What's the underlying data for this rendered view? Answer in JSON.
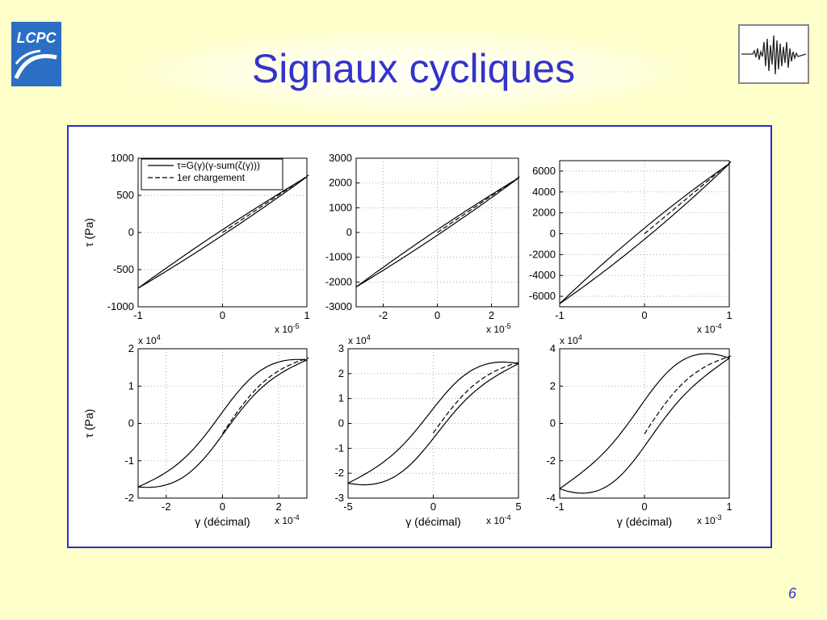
{
  "slide": {
    "title": "Signaux cycliques",
    "page_number": "6",
    "logo_text": "LCPC",
    "colors": {
      "title": "#3333cc",
      "background": "#ffffcc",
      "frame": "#2233cc",
      "logo": "#2a6fc4"
    }
  },
  "legend": {
    "entries": [
      {
        "label": "τ=G(γ)(γ-sum(ζ(γ)))",
        "style": "solid"
      },
      {
        "label": "1er chargement",
        "style": "dashed"
      }
    ]
  },
  "chart_data": [
    {
      "type": "line",
      "title": "",
      "ylabel": "τ (Pa)",
      "xlabel": "",
      "x_exponent": "x 10-5",
      "y_exponent": "",
      "xlim": [
        -1,
        1
      ],
      "ylim": [
        -1000,
        1000
      ],
      "xticks": [
        "-1",
        "0",
        "1"
      ],
      "yticks": [
        "1000",
        "500",
        "0",
        "-500",
        "-1000"
      ],
      "amplitude": [
        1,
        750
      ],
      "loop_width": 0.05,
      "shape": "linear",
      "legend": true,
      "grid": true
    },
    {
      "type": "line",
      "title": "",
      "ylabel": "",
      "xlabel": "",
      "x_exponent": "x 10-5",
      "y_exponent": "",
      "xlim": [
        -3,
        3
      ],
      "ylim": [
        -3000,
        3000
      ],
      "xticks": [
        "-2",
        "0",
        "2"
      ],
      "yticks": [
        "3000",
        "2000",
        "1000",
        "0",
        "-1000",
        "-2000",
        "-3000"
      ],
      "amplitude": [
        3,
        2200
      ],
      "loop_width": 0.05,
      "shape": "linear",
      "legend": false,
      "grid": true
    },
    {
      "type": "line",
      "title": "",
      "ylabel": "",
      "xlabel": "",
      "x_exponent": "x 10-4",
      "y_exponent": "",
      "xlim": [
        -1,
        1
      ],
      "ylim": [
        -7000,
        7000
      ],
      "xticks": [
        "-1",
        "0",
        "1"
      ],
      "yticks": [
        "6000",
        "4000",
        "2000",
        "0",
        "-2000",
        "-4000",
        "-6000"
      ],
      "amplitude": [
        1,
        6700
      ],
      "loop_width": 0.08,
      "shape": "linear",
      "legend": false,
      "grid": true
    },
    {
      "type": "line",
      "title": "",
      "ylabel": "τ (Pa)",
      "xlabel": "γ (décimal)",
      "x_exponent": "x 10-4",
      "y_exponent": "x 10",
      "xlim": [
        -3,
        3
      ],
      "ylim": [
        -2,
        2
      ],
      "xticks": [
        "-2",
        "0",
        "2"
      ],
      "yticks": [
        "2",
        "1",
        "0",
        "-1",
        "-2"
      ],
      "amplitude": [
        3,
        1.7
      ],
      "loop_width": 0.18,
      "shape": "curved",
      "legend": false,
      "grid": true
    },
    {
      "type": "line",
      "title": "",
      "ylabel": "",
      "xlabel": "γ (décimal)",
      "x_exponent": "x 10-4",
      "y_exponent": "x 10",
      "xlim": [
        -5,
        5
      ],
      "ylim": [
        -3,
        3
      ],
      "xticks": [
        "-5",
        "0",
        "5"
      ],
      "yticks": [
        "3",
        "2",
        "1",
        "0",
        "-1",
        "-2",
        "-3"
      ],
      "amplitude": [
        5,
        2.4
      ],
      "loop_width": 0.25,
      "shape": "curved",
      "legend": false,
      "grid": true
    },
    {
      "type": "line",
      "title": "",
      "ylabel": "",
      "xlabel": "γ (décimal)",
      "x_exponent": "x 10-3",
      "y_exponent": "x 10",
      "xlim": [
        -1,
        1
      ],
      "ylim": [
        -4,
        4
      ],
      "xticks": [
        "-1",
        "0",
        "1"
      ],
      "yticks": [
        "4",
        "2",
        "0",
        "-2",
        "-4"
      ],
      "amplitude": [
        1,
        3.5
      ],
      "loop_width": 0.35,
      "shape": "curved",
      "legend": false,
      "grid": true
    }
  ]
}
